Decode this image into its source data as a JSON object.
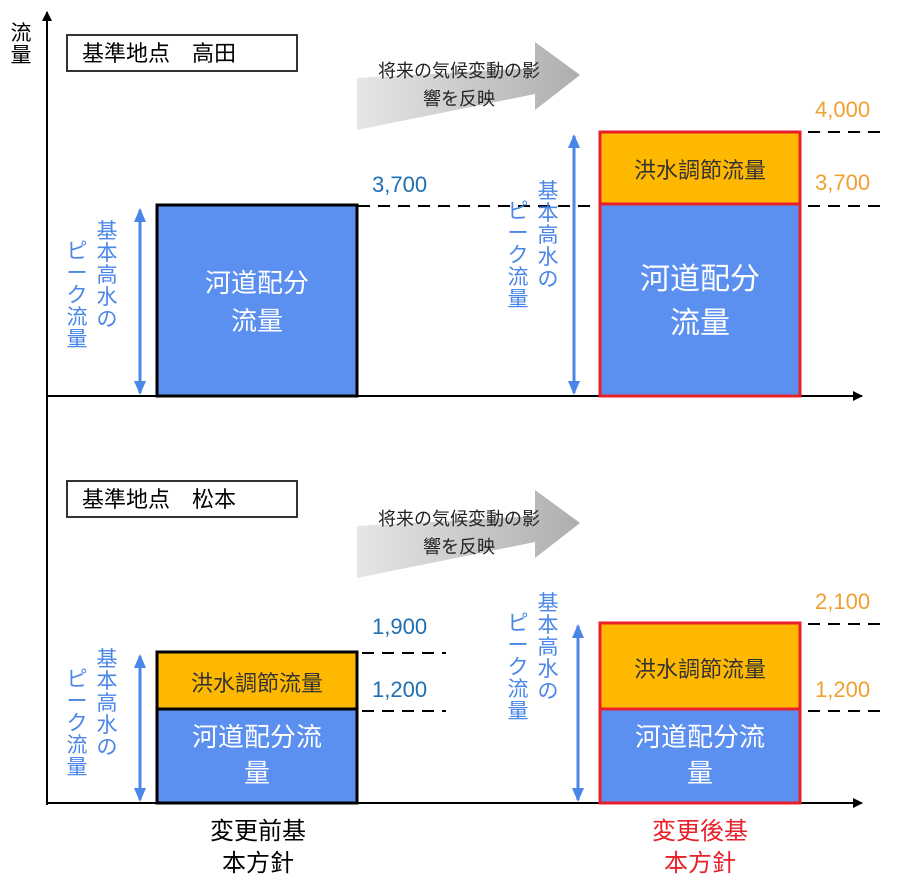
{
  "axis": {
    "y_label": "流量"
  },
  "colors": {
    "blue_fill": "#5b8ff0",
    "orange_fill": "#ffb800",
    "red_border": "#e8202a",
    "axis_blue": "#4a86e8",
    "value_blue": "#1f6fb2",
    "value_orange": "#f0a030"
  },
  "panels": [
    {
      "station": "基準地点　高田",
      "arrow_text": "将来の気候変動の影響を反映",
      "peak_label": "基本高水のピーク流量",
      "before": {
        "river": "河道配分流量",
        "total": "3,700"
      },
      "after": {
        "flood": "洪水調節流量",
        "river": "河道配分流量",
        "total": "4,000",
        "river_value": "3,700"
      }
    },
    {
      "station": "基準地点　松本",
      "arrow_text": "将来の気候変動の影響を反映",
      "peak_label": "基本高水のピーク流量",
      "before": {
        "flood": "洪水調節流量",
        "river": "河道配分流量",
        "total": "1,900",
        "river_value": "1,200"
      },
      "after": {
        "flood": "洪水調節流量",
        "river": "河道配分流量",
        "total": "2,100",
        "river_value": "1,200"
      }
    }
  ],
  "captions": {
    "before": "変更前基本方針",
    "after": "変更後基本方針"
  }
}
